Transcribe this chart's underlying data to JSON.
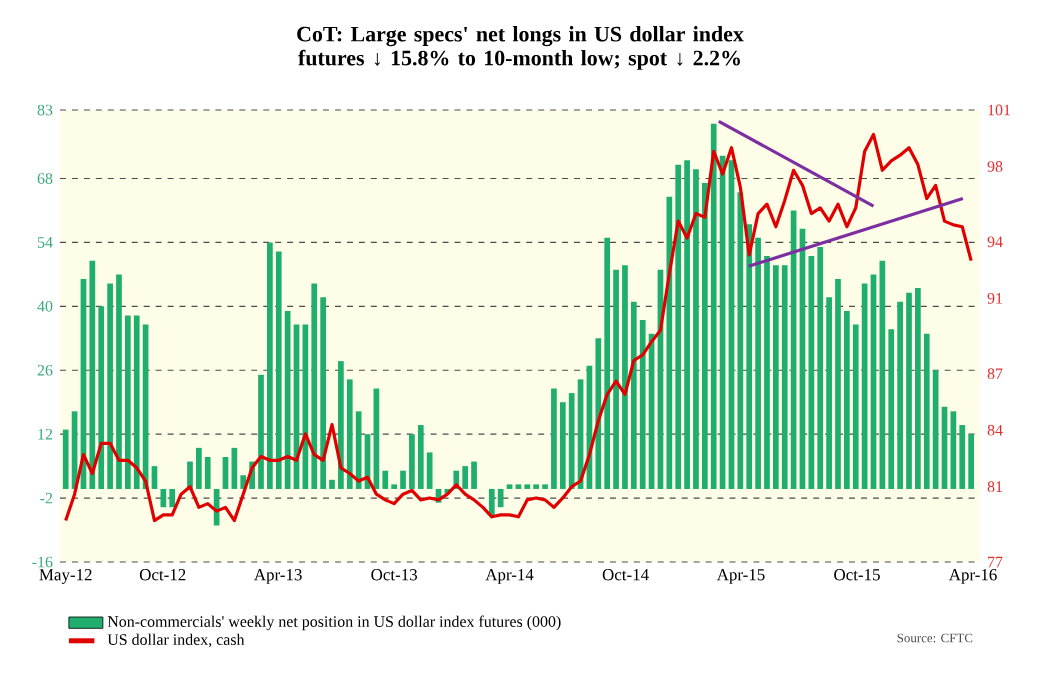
{
  "chart_data": {
    "type": "bar",
    "title": "CoT: Large specs' net longs in US dollar index futures ↓ 15.8% to 10-month low; spot ↓ 2.2%",
    "x": [
      "2012-05-01",
      "2012-05-15",
      "2012-05-29",
      "2012-06-12",
      "2012-06-26",
      "2012-07-10",
      "2012-07-24",
      "2012-08-07",
      "2012-08-21",
      "2012-09-04",
      "2012-09-18",
      "2012-10-02",
      "2012-10-16",
      "2012-10-30",
      "2012-11-13",
      "2012-11-27",
      "2012-12-11",
      "2012-12-25",
      "2013-01-08",
      "2013-01-22",
      "2013-02-05",
      "2013-02-19",
      "2013-03-05",
      "2013-03-19",
      "2013-04-02",
      "2013-04-16",
      "2013-04-30",
      "2013-05-14",
      "2013-05-28",
      "2013-06-11",
      "2013-06-25",
      "2013-07-09",
      "2013-07-23",
      "2013-08-06",
      "2013-08-20",
      "2013-09-03",
      "2013-09-17",
      "2013-10-01",
      "2013-10-15",
      "2013-10-29",
      "2013-11-12",
      "2013-11-26",
      "2013-12-10",
      "2013-12-24",
      "2014-01-07",
      "2014-01-21",
      "2014-02-04",
      "2014-02-18",
      "2014-03-04",
      "2014-03-18",
      "2014-04-01",
      "2014-04-15",
      "2014-04-29",
      "2014-05-13",
      "2014-05-27",
      "2014-06-10",
      "2014-06-24",
      "2014-07-08",
      "2014-07-22",
      "2014-08-05",
      "2014-08-19",
      "2014-09-02",
      "2014-09-16",
      "2014-09-30",
      "2014-10-14",
      "2014-10-28",
      "2014-11-11",
      "2014-11-25",
      "2014-12-09",
      "2014-12-23",
      "2015-01-06",
      "2015-01-20",
      "2015-02-03",
      "2015-02-17",
      "2015-03-03",
      "2015-03-17",
      "2015-03-31",
      "2015-04-14",
      "2015-04-28",
      "2015-05-12",
      "2015-05-26",
      "2015-06-09",
      "2015-06-23",
      "2015-07-07",
      "2015-07-21",
      "2015-08-04",
      "2015-08-18",
      "2015-09-01",
      "2015-09-15",
      "2015-09-29",
      "2015-10-13",
      "2015-10-27",
      "2015-11-10",
      "2015-11-24",
      "2015-12-08",
      "2015-12-22",
      "2016-01-05",
      "2016-01-19",
      "2016-02-02",
      "2016-02-16",
      "2016-03-01",
      "2016-03-15",
      "2016-03-29"
    ],
    "series": [
      {
        "name": "Non-commercials' weekly net position in US dollar index futures (000)",
        "axis": "y",
        "color": "#1fae6e",
        "values": [
          13,
          17,
          46,
          50,
          40,
          45,
          47,
          38,
          38,
          36,
          5,
          -4,
          -4,
          0,
          6,
          9,
          7,
          -8,
          7,
          9,
          3,
          6,
          25,
          54,
          52,
          39,
          36,
          36,
          45,
          42,
          2,
          28,
          24,
          17,
          12,
          22,
          4,
          1,
          4,
          12,
          14,
          8,
          -3,
          -1,
          4,
          5,
          6,
          0,
          -6,
          -4,
          1,
          1,
          1,
          1,
          1,
          22,
          19,
          21,
          24,
          27,
          33,
          55,
          48,
          49,
          41,
          37,
          34,
          48,
          64,
          71,
          72,
          70,
          67,
          80,
          73,
          72,
          65,
          58,
          55,
          51,
          49,
          49,
          61,
          57,
          51,
          53,
          42,
          46,
          39,
          36,
          45,
          47,
          50,
          35,
          41,
          43,
          44,
          34,
          26,
          18,
          17,
          14,
          12
        ]
      },
      {
        "name": "US dollar index, cash",
        "type": "line",
        "axis": "y2",
        "color": "#e00000",
        "values": [
          79.2,
          80.6,
          82.7,
          81.7,
          83.3,
          83.3,
          82.4,
          82.4,
          82.0,
          81.3,
          79.2,
          79.5,
          79.5,
          80.6,
          81.0,
          79.9,
          80.1,
          79.7,
          79.9,
          79.2,
          80.6,
          82.0,
          82.6,
          82.4,
          82.4,
          82.6,
          82.4,
          83.8,
          82.7,
          82.4,
          84.3,
          82.0,
          81.7,
          81.3,
          81.5,
          80.6,
          80.3,
          80.1,
          80.6,
          80.8,
          80.3,
          80.4,
          80.3,
          80.6,
          81.1,
          80.6,
          80.3,
          79.9,
          79.4,
          79.5,
          79.5,
          79.4,
          80.3,
          80.4,
          80.3,
          79.9,
          80.4,
          81.0,
          81.3,
          82.7,
          84.5,
          85.9,
          86.6,
          85.9,
          87.7,
          88.0,
          88.7,
          89.3,
          92.3,
          95.1,
          94.2,
          95.5,
          95.3,
          98.8,
          97.6,
          99.0,
          96.9,
          93.3,
          95.5,
          96.0,
          94.8,
          96.2,
          97.8,
          97.0,
          95.5,
          95.8,
          95.1,
          96.0,
          94.8,
          95.8,
          98.8,
          99.7,
          97.8,
          98.3,
          98.6,
          99.0,
          98.1,
          96.3,
          97.0,
          95.1,
          94.9,
          94.8,
          93.0
        ]
      },
      {
        "type": "line",
        "axis": "y2",
        "color": "#7b2fa0",
        "x": [
          "2015-02-25",
          "2015-10-27"
        ],
        "values": [
          100.4,
          95.9
        ]
      },
      {
        "type": "line",
        "axis": "y2",
        "color": "#7b2fa0",
        "x": [
          "2015-04-13",
          "2016-03-16"
        ],
        "values": [
          92.7,
          96.3
        ]
      }
    ],
    "xlim": [
      "2012-04-22",
      "2016-04-12"
    ],
    "xticks": [
      {
        "value": "2012-05-01",
        "label": "May-12"
      },
      {
        "value": "2012-10-01",
        "label": "Oct-12"
      },
      {
        "value": "2013-04-01",
        "label": "Apr-13"
      },
      {
        "value": "2013-10-01",
        "label": "Oct-13"
      },
      {
        "value": "2014-04-01",
        "label": "Apr-14"
      },
      {
        "value": "2014-10-01",
        "label": "Oct-14"
      },
      {
        "value": "2015-04-01",
        "label": "Apr-15"
      },
      {
        "value": "2015-10-01",
        "label": "Oct-15"
      },
      {
        "value": "2016-04-01",
        "label": "Apr-16"
      }
    ],
    "ylim": [
      -16,
      83
    ],
    "yticks": [
      -16,
      -2,
      12,
      26,
      40,
      54,
      68,
      83
    ],
    "y2lim": [
      77,
      101
    ],
    "y2ticks": [
      77,
      81,
      84,
      87,
      91,
      94,
      98,
      101
    ],
    "grid": "y",
    "legend": "bottom left",
    "annotations": [
      "Source: CFTC"
    ]
  }
}
